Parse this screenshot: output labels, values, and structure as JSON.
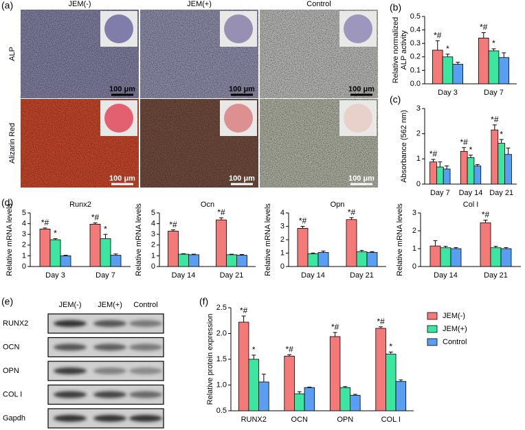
{
  "micrographs": {
    "panel": "(a)",
    "columns": [
      "JEM(-)",
      "JEM(+)",
      "Control"
    ],
    "rows": [
      "ALP",
      "Alizarin Red"
    ],
    "scale_bar": "100 μm"
  },
  "western_blot": {
    "panel": "(e)",
    "columns": [
      "JEM(-)",
      "JEM(+)",
      "Control"
    ],
    "rows": [
      "RUNX2",
      "OCN",
      "OPN",
      "COL I",
      "Gapdh"
    ]
  },
  "chart_data": [
    {
      "type": "bar",
      "panel": "(b)",
      "ylabel": [
        "Relative normalized",
        "ALP activity"
      ],
      "categories": [
        "Day 3",
        "Day 7"
      ],
      "ylim": [
        0,
        0.5
      ],
      "yticks": [
        {
          "value": 0,
          "label": "0.0"
        },
        0.1,
        0.2,
        0.3,
        0.4,
        0.5
      ],
      "series": [
        {
          "color": "#f47a7a",
          "values": [
            0.25,
            0.34
          ],
          "errors": [
            0.07,
            0.04
          ],
          "sig": [
            "*#",
            "*#"
          ]
        },
        {
          "color": "#3ce6a0",
          "values": [
            0.2,
            0.245
          ],
          "errors": [
            0.02,
            0.015
          ],
          "sig": [
            "*",
            "*"
          ]
        },
        {
          "color": "#5a9ef2",
          "values": [
            0.145,
            0.195
          ],
          "errors": [
            0.015,
            0.035
          ]
        }
      ]
    },
    {
      "type": "bar",
      "panel": "(c)",
      "ylabel": [
        "Absorbance (562 nm)"
      ],
      "categories": [
        "Day 7",
        "Day 14",
        "Day 21"
      ],
      "ylim": [
        0,
        3
      ],
      "yticks": [
        0,
        1,
        2,
        3
      ],
      "series": [
        {
          "color": "#f47a7a",
          "values": [
            0.88,
            1.3,
            2.15
          ],
          "errors": [
            0.1,
            0.15,
            0.2
          ],
          "sig": [
            "*#",
            "*#",
            "*#"
          ]
        },
        {
          "color": "#3ce6a0",
          "values": [
            0.68,
            1.05,
            1.62
          ],
          "errors": [
            0.2,
            0.1,
            0.15
          ],
          "sig": [
            null,
            "*",
            "*"
          ]
        },
        {
          "color": "#5a9ef2",
          "values": [
            0.6,
            0.72,
            1.18
          ],
          "errors": [
            0.12,
            0.06,
            0.25
          ]
        }
      ]
    },
    {
      "type": "bar",
      "panel": "(d)",
      "title": "Runx2",
      "ylabel": [
        "Relative mRNA levels"
      ],
      "categories": [
        "Day 3",
        "Day 7"
      ],
      "ylim": [
        0,
        5
      ],
      "yticks": [
        0,
        1,
        2,
        3,
        4,
        5
      ],
      "series": [
        {
          "color": "#f47a7a",
          "values": [
            3.5,
            3.95
          ],
          "errors": [
            0.1,
            0.12
          ],
          "sig": [
            "*#",
            "*#"
          ]
        },
        {
          "color": "#3ce6a0",
          "values": [
            2.5,
            2.6
          ],
          "errors": [
            0.1,
            0.4
          ],
          "sig": [
            "*",
            "*"
          ]
        },
        {
          "color": "#5a9ef2",
          "values": [
            1.0,
            1.05
          ],
          "errors": [
            0.05,
            0.12
          ]
        }
      ]
    },
    {
      "type": "bar",
      "title": "Ocn",
      "ylabel": [
        "Relative mRNA levels"
      ],
      "categories": [
        "Day 14",
        "Day 21"
      ],
      "ylim": [
        0,
        5
      ],
      "yticks": [
        0,
        1,
        2,
        3,
        4,
        5
      ],
      "series": [
        {
          "color": "#f47a7a",
          "values": [
            3.3,
            4.35
          ],
          "errors": [
            0.12,
            0.2
          ],
          "sig": [
            "*#",
            "*#"
          ]
        },
        {
          "color": "#3ce6a0",
          "values": [
            1.15,
            1.1
          ],
          "errors": [
            0.05,
            0.05
          ]
        },
        {
          "color": "#5a9ef2",
          "values": [
            1.1,
            1.05
          ],
          "errors": [
            0.05,
            0.07
          ]
        }
      ]
    },
    {
      "type": "bar",
      "title": "Opn",
      "ylabel": [
        "Relative mRNA levels"
      ],
      "categories": [
        "Day 14",
        "Day 21"
      ],
      "ylim": [
        0,
        4
      ],
      "yticks": [
        0,
        1,
        2,
        3,
        4
      ],
      "series": [
        {
          "color": "#f47a7a",
          "values": [
            2.85,
            3.5
          ],
          "errors": [
            0.15,
            0.15
          ],
          "sig": [
            "*#",
            "*#"
          ]
        },
        {
          "color": "#3ce6a0",
          "values": [
            0.95,
            1.1
          ],
          "errors": [
            0.06,
            0.1
          ]
        },
        {
          "color": "#5a9ef2",
          "values": [
            1.05,
            1.05
          ],
          "errors": [
            0.1,
            0.06
          ]
        }
      ]
    },
    {
      "type": "bar",
      "title": "Col I",
      "ylabel": [
        "Relative mRNA levels"
      ],
      "categories": [
        "Day 14",
        "Day 21"
      ],
      "ylim": [
        0,
        3
      ],
      "yticks": [
        0,
        1,
        2,
        3
      ],
      "series": [
        {
          "color": "#f47a7a",
          "values": [
            1.15,
            2.45
          ],
          "errors": [
            0.3,
            0.15
          ],
          "sig": [
            null,
            "*#"
          ]
        },
        {
          "color": "#3ce6a0",
          "values": [
            1.05,
            1.05
          ],
          "errors": [
            0.08,
            0.08
          ]
        },
        {
          "color": "#5a9ef2",
          "values": [
            1.0,
            1.0
          ],
          "errors": [
            0.06,
            0.06
          ]
        }
      ]
    },
    {
      "type": "bar",
      "panel": "(f)",
      "ylabel": [
        "Relative protein expression"
      ],
      "categories": [
        "RUNX2",
        "OCN",
        "OPN",
        "COL I"
      ],
      "ylim": [
        0.5,
        2.5
      ],
      "yticks": [
        0.5,
        {
          "value": 1,
          "label": "1.0"
        },
        1.5,
        {
          "value": 2,
          "label": "2.0"
        },
        2.5
      ],
      "legend": "right",
      "series": [
        {
          "name": "JEM(-)",
          "color": "#f47a7a",
          "values": [
            2.22,
            1.56,
            1.94,
            2.1
          ],
          "errors": [
            0.12,
            0.03,
            0.08,
            0.03
          ],
          "sig": [
            "*#",
            "*#",
            "*#",
            "*#"
          ]
        },
        {
          "name": "JEM(+)",
          "color": "#3ce6a0",
          "values": [
            1.5,
            0.83,
            0.95,
            1.6
          ],
          "errors": [
            0.08,
            0.04,
            0.02,
            0.04
          ],
          "sig": [
            "*",
            null,
            null,
            "*"
          ]
        },
        {
          "name": "Control",
          "color": "#5a9ef2",
          "values": [
            1.06,
            0.95,
            0.8,
            1.07
          ],
          "errors": [
            0.15,
            0.01,
            0.02,
            0.03
          ]
        }
      ]
    }
  ]
}
